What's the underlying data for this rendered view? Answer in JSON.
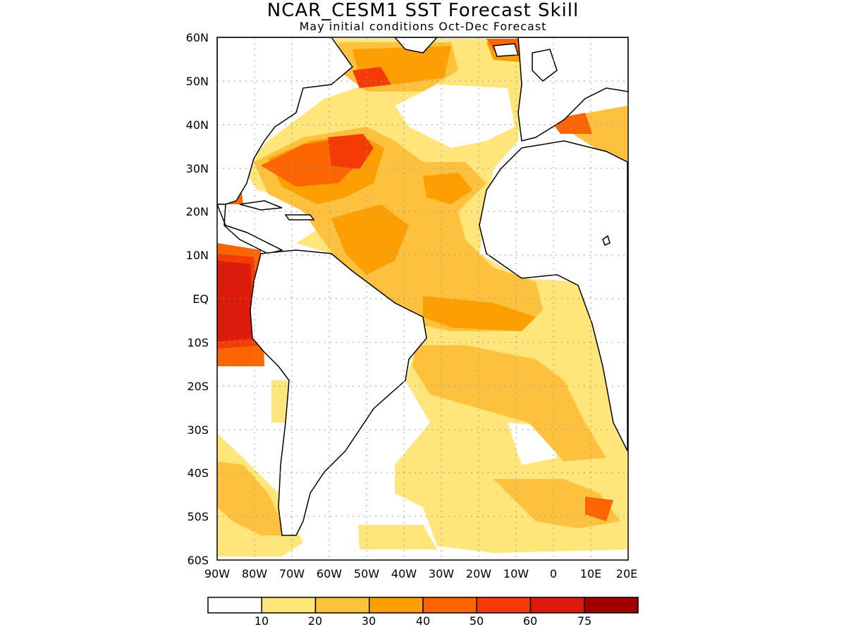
{
  "header": {
    "title": "NCAR_CESM1  SST Forecast Skill",
    "subtitle": "May initial conditions  Oct-Dec Forecast"
  },
  "map": {
    "region": "Atlantic Ocean",
    "lat_range": [
      -60,
      60
    ],
    "lon_range": [
      -90,
      20
    ],
    "lat_labels": [
      "60N",
      "50N",
      "40N",
      "30N",
      "20N",
      "10N",
      "EQ",
      "10S",
      "20S",
      "30S",
      "40S",
      "50S",
      "60S"
    ],
    "lon_labels": [
      "90W",
      "80W",
      "70W",
      "60W",
      "50W",
      "40W",
      "30W",
      "20W",
      "10W",
      "0",
      "10E",
      "20E"
    ],
    "grid": "dotted"
  },
  "colorbar": {
    "bins": [
      "#ffffff",
      "#ffe57a",
      "#fdc13e",
      "#fd9f00",
      "#fd6500",
      "#f43a07",
      "#dc1b0a",
      "#a10000"
    ],
    "labels": [
      "10",
      "20",
      "30",
      "40",
      "50",
      "60",
      "75"
    ]
  }
}
